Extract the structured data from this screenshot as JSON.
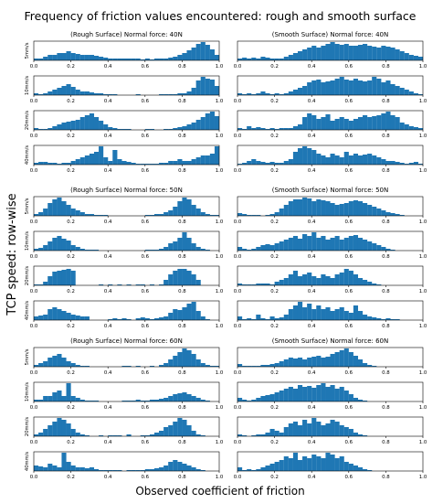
{
  "figure": {
    "title": "Frequency of friction values encountered: rough and smooth surface",
    "xlabel": "Observed coefficient of friction",
    "ylabel": "TCP speed: row-wise"
  },
  "colors": {
    "bar": "#1f77b4",
    "axis": "#000000",
    "background": "#ffffff"
  },
  "chart_data": {
    "type": "bar",
    "layout": "histogram small multiples: 3 force groups x 4 speed rows x 2 surfaces",
    "xlim": [
      0,
      1.0
    ],
    "xticks": [
      "0.0",
      "0.2",
      "0.4",
      "0.6",
      "0.8",
      "1.0"
    ],
    "y_axis": "relative frequency, no y ticks shown",
    "bins_per_panel": 40,
    "speeds": [
      "5mm/s",
      "10mm/s",
      "20mm/s",
      "40mm/s"
    ],
    "groups": [
      {
        "force": "40N",
        "rough_title": "(Rough Surface) Normal force: 40N",
        "smooth_title": "(Smooth Surface) Normal force: 40N",
        "rough": [
          [
            0.1,
            0.1,
            0.2,
            0.3,
            0.3,
            0.4,
            0.4,
            0.5,
            0.4,
            0.35,
            0.3,
            0.3,
            0.3,
            0.25,
            0.2,
            0.15,
            0.1,
            0.1,
            0.1,
            0.1,
            0.1,
            0.1,
            0.1,
            0.05,
            0.1,
            0.05,
            0.1,
            0.1,
            0.1,
            0.15,
            0.2,
            0.3,
            0.4,
            0.55,
            0.7,
            0.9,
            1.0,
            0.85,
            0.6,
            0.3
          ],
          [
            0.1,
            0.05,
            0.1,
            0.2,
            0.3,
            0.4,
            0.5,
            0.6,
            0.45,
            0.3,
            0.2,
            0.2,
            0.15,
            0.1,
            0.1,
            0.05,
            0.05,
            0.05,
            0,
            0,
            0,
            0,
            0.05,
            0,
            0,
            0,
            0,
            0.05,
            0.05,
            0.05,
            0.05,
            0.1,
            0.1,
            0.2,
            0.4,
            0.8,
            1.0,
            0.9,
            0.85,
            0.5
          ],
          [
            0.1,
            0.05,
            0.05,
            0.1,
            0.2,
            0.3,
            0.4,
            0.45,
            0.5,
            0.55,
            0.7,
            0.8,
            0.9,
            0.7,
            0.5,
            0.3,
            0.15,
            0.1,
            0.05,
            0.05,
            0.05,
            0,
            0,
            0,
            0.05,
            0.05,
            0,
            0,
            0.05,
            0.05,
            0.1,
            0.15,
            0.2,
            0.3,
            0.4,
            0.55,
            0.7,
            0.9,
            1.0,
            0.75
          ],
          [
            0.1,
            0.15,
            0.15,
            0.1,
            0.1,
            0.05,
            0.1,
            0.1,
            0.2,
            0.3,
            0.4,
            0.5,
            0.6,
            0.7,
            1.0,
            0.4,
            0.2,
            0.8,
            0.3,
            0.2,
            0.15,
            0.1,
            0.05,
            0.05,
            0.05,
            0.05,
            0.05,
            0.1,
            0.1,
            0.2,
            0.2,
            0.3,
            0.2,
            0.2,
            0.3,
            0.4,
            0.5,
            0.5,
            0.6,
            1.0
          ]
        ],
        "smooth": [
          [
            0.1,
            0.15,
            0.1,
            0.15,
            0.1,
            0.2,
            0.15,
            0.1,
            0.1,
            0.1,
            0.2,
            0.3,
            0.4,
            0.5,
            0.6,
            0.7,
            0.8,
            0.7,
            0.8,
            0.9,
            1.0,
            0.9,
            0.85,
            0.9,
            0.8,
            0.8,
            0.85,
            0.9,
            0.8,
            0.75,
            0.7,
            0.8,
            0.75,
            0.7,
            0.6,
            0.5,
            0.4,
            0.3,
            0.25,
            0.2
          ],
          [
            0.1,
            0.05,
            0.1,
            0.05,
            0.1,
            0.2,
            0.1,
            0.05,
            0.1,
            0.05,
            0.1,
            0.2,
            0.3,
            0.4,
            0.5,
            0.7,
            0.8,
            0.85,
            0.7,
            0.75,
            0.8,
            0.9,
            1.0,
            0.85,
            0.8,
            0.9,
            0.8,
            0.75,
            0.8,
            1.0,
            0.9,
            0.7,
            0.8,
            0.6,
            0.5,
            0.4,
            0.3,
            0.2,
            0.1,
            0.05
          ],
          [
            0.1,
            0.05,
            0.2,
            0.1,
            0.15,
            0.1,
            0.05,
            0.1,
            0.05,
            0.1,
            0.1,
            0.1,
            0.2,
            0.3,
            0.7,
            0.9,
            0.8,
            0.6,
            0.7,
            0.85,
            0.5,
            0.6,
            0.7,
            0.6,
            0.5,
            0.6,
            0.7,
            0.8,
            0.7,
            0.75,
            0.8,
            0.9,
            1.0,
            0.8,
            0.7,
            0.4,
            0.3,
            0.2,
            0.15,
            0.1
          ],
          [
            0.05,
            0.1,
            0.2,
            0.3,
            0.2,
            0.15,
            0.1,
            0.15,
            0.1,
            0.1,
            0.2,
            0.3,
            0.7,
            0.9,
            1.0,
            0.9,
            0.8,
            0.6,
            0.5,
            0.4,
            0.6,
            0.5,
            0.4,
            0.7,
            0.5,
            0.6,
            0.5,
            0.55,
            0.6,
            0.5,
            0.4,
            0.3,
            0.2,
            0.2,
            0.15,
            0.1,
            0.05,
            0.1,
            0.15,
            0.05
          ]
        ]
      },
      {
        "force": "50N",
        "rough_title": "(Rough Surface) Normal force: 50N",
        "smooth_title": "(Smooth Surface) Normal force: 50N",
        "rough": [
          [
            0.1,
            0.2,
            0.4,
            0.7,
            0.9,
            1.0,
            0.8,
            0.6,
            0.4,
            0.3,
            0.2,
            0.1,
            0.1,
            0.05,
            0.05,
            0.05,
            0,
            0,
            0,
            0,
            0,
            0,
            0,
            0,
            0.05,
            0.05,
            0.1,
            0.1,
            0.2,
            0.3,
            0.5,
            0.8,
            1.0,
            0.9,
            0.6,
            0.4,
            0.2,
            0.1,
            0.05,
            0.05
          ],
          [
            0.1,
            0.15,
            0.3,
            0.5,
            0.7,
            0.8,
            0.65,
            0.55,
            0.3,
            0.2,
            0.1,
            0.05,
            0.05,
            0.05,
            0,
            0,
            0,
            0,
            0,
            0,
            0,
            0,
            0,
            0,
            0.05,
            0.05,
            0.05,
            0.1,
            0.2,
            0.4,
            0.5,
            0.7,
            1.0,
            0.7,
            0.4,
            0.2,
            0.1,
            0.05,
            0,
            0
          ],
          [
            0.05,
            0.05,
            0.2,
            0.5,
            0.75,
            0.8,
            0.85,
            0.9,
            0.8,
            0,
            0,
            0,
            0,
            0,
            0.05,
            0,
            0.05,
            0,
            0.05,
            0,
            0.05,
            0,
            0.05,
            0.05,
            0,
            0.05,
            0,
            0.05,
            0.3,
            0.6,
            0.8,
            0.9,
            0.9,
            0.8,
            0.6,
            0.3,
            0,
            0,
            0,
            0
          ],
          [
            0.2,
            0.25,
            0.3,
            0.6,
            0.7,
            0.6,
            0.5,
            0.4,
            0.3,
            0.25,
            0.2,
            0.2,
            0,
            0,
            0,
            0,
            0.05,
            0.1,
            0.05,
            0.1,
            0.05,
            0,
            0.1,
            0.15,
            0.1,
            0.05,
            0.1,
            0.15,
            0.2,
            0.4,
            0.6,
            0.55,
            0.7,
            0.9,
            1.0,
            0.5,
            0.2,
            0.05,
            0,
            0
          ]
        ],
        "smooth": [
          [
            0.15,
            0.1,
            0.05,
            0.05,
            0.05,
            0,
            0.05,
            0.1,
            0.2,
            0.4,
            0.6,
            0.8,
            0.9,
            0.9,
            1.0,
            0.95,
            0.8,
            0.9,
            0.85,
            0.8,
            0.7,
            0.6,
            0.65,
            0.7,
            0.8,
            0.85,
            0.8,
            0.7,
            0.6,
            0.5,
            0.4,
            0.3,
            0.2,
            0.15,
            0.1,
            0.05,
            0,
            0,
            0,
            0
          ],
          [
            0.2,
            0.1,
            0.05,
            0.1,
            0.2,
            0.3,
            0.35,
            0.3,
            0.4,
            0.5,
            0.6,
            0.7,
            0.8,
            0.65,
            0.9,
            0.8,
            1.0,
            0.7,
            0.8,
            0.6,
            0.7,
            0.8,
            0.6,
            0.7,
            0.8,
            0.85,
            0.7,
            0.6,
            0.5,
            0.4,
            0.3,
            0.2,
            0.1,
            0.05,
            0,
            0,
            0,
            0,
            0,
            0
          ],
          [
            0.1,
            0.05,
            0.05,
            0.05,
            0.1,
            0.1,
            0.1,
            0.05,
            0.2,
            0.3,
            0.4,
            0.6,
            0.8,
            0.5,
            0.6,
            0.7,
            0.5,
            0.4,
            0.6,
            0.5,
            0.4,
            0.6,
            0.7,
            0.9,
            0.8,
            0.6,
            0.4,
            0.3,
            0.2,
            0.1,
            0.05,
            0,
            0,
            0,
            0,
            0,
            0,
            0,
            0,
            0
          ],
          [
            0.2,
            0.05,
            0.1,
            0.05,
            0.3,
            0.1,
            0.05,
            0.2,
            0.1,
            0.15,
            0.3,
            0.6,
            0.8,
            1.0,
            0.7,
            0.9,
            0.6,
            0.8,
            0.6,
            0.7,
            0.5,
            0.6,
            0.7,
            0.5,
            0.4,
            0.8,
            0.5,
            0.3,
            0.2,
            0.15,
            0.1,
            0.05,
            0.1,
            0.05,
            0.05,
            0,
            0,
            0,
            0,
            0
          ]
        ]
      },
      {
        "force": "60N",
        "rough_title": "(Rough Surface) Normal force: 60N",
        "smooth_title": "(Smooth Surface) Normal force: 60N",
        "rough": [
          [
            0.1,
            0.2,
            0.3,
            0.5,
            0.6,
            0.7,
            0.5,
            0.3,
            0.2,
            0.1,
            0.05,
            0.05,
            0,
            0,
            0,
            0,
            0,
            0,
            0,
            0.05,
            0.05,
            0,
            0.05,
            0,
            0,
            0.05,
            0,
            0.1,
            0.2,
            0.4,
            0.6,
            0.8,
            1.0,
            0.9,
            0.7,
            0.4,
            0.2,
            0.1,
            0.05,
            0.05
          ],
          [
            0.1,
            0.1,
            0.3,
            0.3,
            0.5,
            0.6,
            0.3,
            1.0,
            0.3,
            0.2,
            0.1,
            0.05,
            0.05,
            0.05,
            0,
            0,
            0,
            0,
            0,
            0.05,
            0.05,
            0.05,
            0.1,
            0.05,
            0.05,
            0.1,
            0.1,
            0.15,
            0.2,
            0.3,
            0.4,
            0.45,
            0.5,
            0.4,
            0.3,
            0.2,
            0.1,
            0.05,
            0,
            0
          ],
          [
            0.1,
            0.2,
            0.4,
            0.6,
            0.8,
            1.0,
            0.9,
            0.7,
            0.4,
            0.2,
            0.1,
            0.05,
            0,
            0,
            0.05,
            0,
            0.05,
            0.05,
            0.05,
            0,
            0.1,
            0,
            0,
            0.05,
            0.05,
            0.1,
            0.2,
            0.3,
            0.5,
            0.6,
            0.8,
            1.0,
            0.9,
            0.6,
            0.3,
            0.1,
            0.05,
            0,
            0,
            0
          ],
          [
            0.3,
            0.25,
            0.2,
            0.4,
            0.3,
            0.2,
            1.0,
            0.5,
            0.3,
            0.2,
            0.2,
            0.15,
            0.2,
            0.1,
            0.05,
            0.05,
            0.05,
            0.05,
            0.05,
            0,
            0.05,
            0.05,
            0.05,
            0.05,
            0.1,
            0.1,
            0.15,
            0.2,
            0.3,
            0.5,
            0.6,
            0.5,
            0.4,
            0.3,
            0.2,
            0.1,
            0.05,
            0,
            0,
            0
          ]
        ],
        "smooth": [
          [
            0.15,
            0.05,
            0.05,
            0.05,
            0.05,
            0.1,
            0.1,
            0.15,
            0.2,
            0.3,
            0.4,
            0.5,
            0.45,
            0.5,
            0.4,
            0.5,
            0.55,
            0.6,
            0.5,
            0.55,
            0.7,
            0.8,
            0.9,
            1.0,
            0.8,
            0.6,
            0.4,
            0.2,
            0.1,
            0.05,
            0,
            0,
            0,
            0,
            0,
            0,
            0,
            0,
            0,
            0
          ],
          [
            0.2,
            0.1,
            0.05,
            0.1,
            0.2,
            0.3,
            0.35,
            0.4,
            0.5,
            0.6,
            0.7,
            0.8,
            0.7,
            0.9,
            0.8,
            0.85,
            0.75,
            0.9,
            1.0,
            0.8,
            0.9,
            0.7,
            0.8,
            0.6,
            0.4,
            0.2,
            0.1,
            0.05,
            0,
            0,
            0,
            0,
            0,
            0,
            0,
            0,
            0,
            0,
            0,
            0
          ],
          [
            0.1,
            0.05,
            0,
            0.05,
            0.1,
            0.1,
            0.2,
            0.4,
            0.3,
            0.2,
            0.5,
            0.7,
            0.8,
            0.6,
            0.9,
            0.7,
            1.0,
            0.8,
            0.6,
            0.7,
            0.9,
            0.8,
            0.6,
            0.5,
            0.4,
            0.2,
            0.1,
            0.05,
            0,
            0,
            0,
            0,
            0,
            0,
            0,
            0,
            0,
            0,
            0,
            0
          ],
          [
            0.2,
            0.05,
            0.1,
            0.05,
            0.1,
            0.2,
            0.3,
            0.4,
            0.5,
            0.6,
            0.8,
            0.7,
            1.0,
            0.6,
            0.8,
            0.7,
            0.9,
            0.8,
            0.7,
            1.0,
            0.9,
            0.7,
            0.8,
            0.5,
            0.4,
            0.3,
            0.2,
            0.1,
            0.05,
            0,
            0,
            0,
            0,
            0,
            0,
            0,
            0,
            0,
            0,
            0
          ]
        ]
      }
    ]
  }
}
